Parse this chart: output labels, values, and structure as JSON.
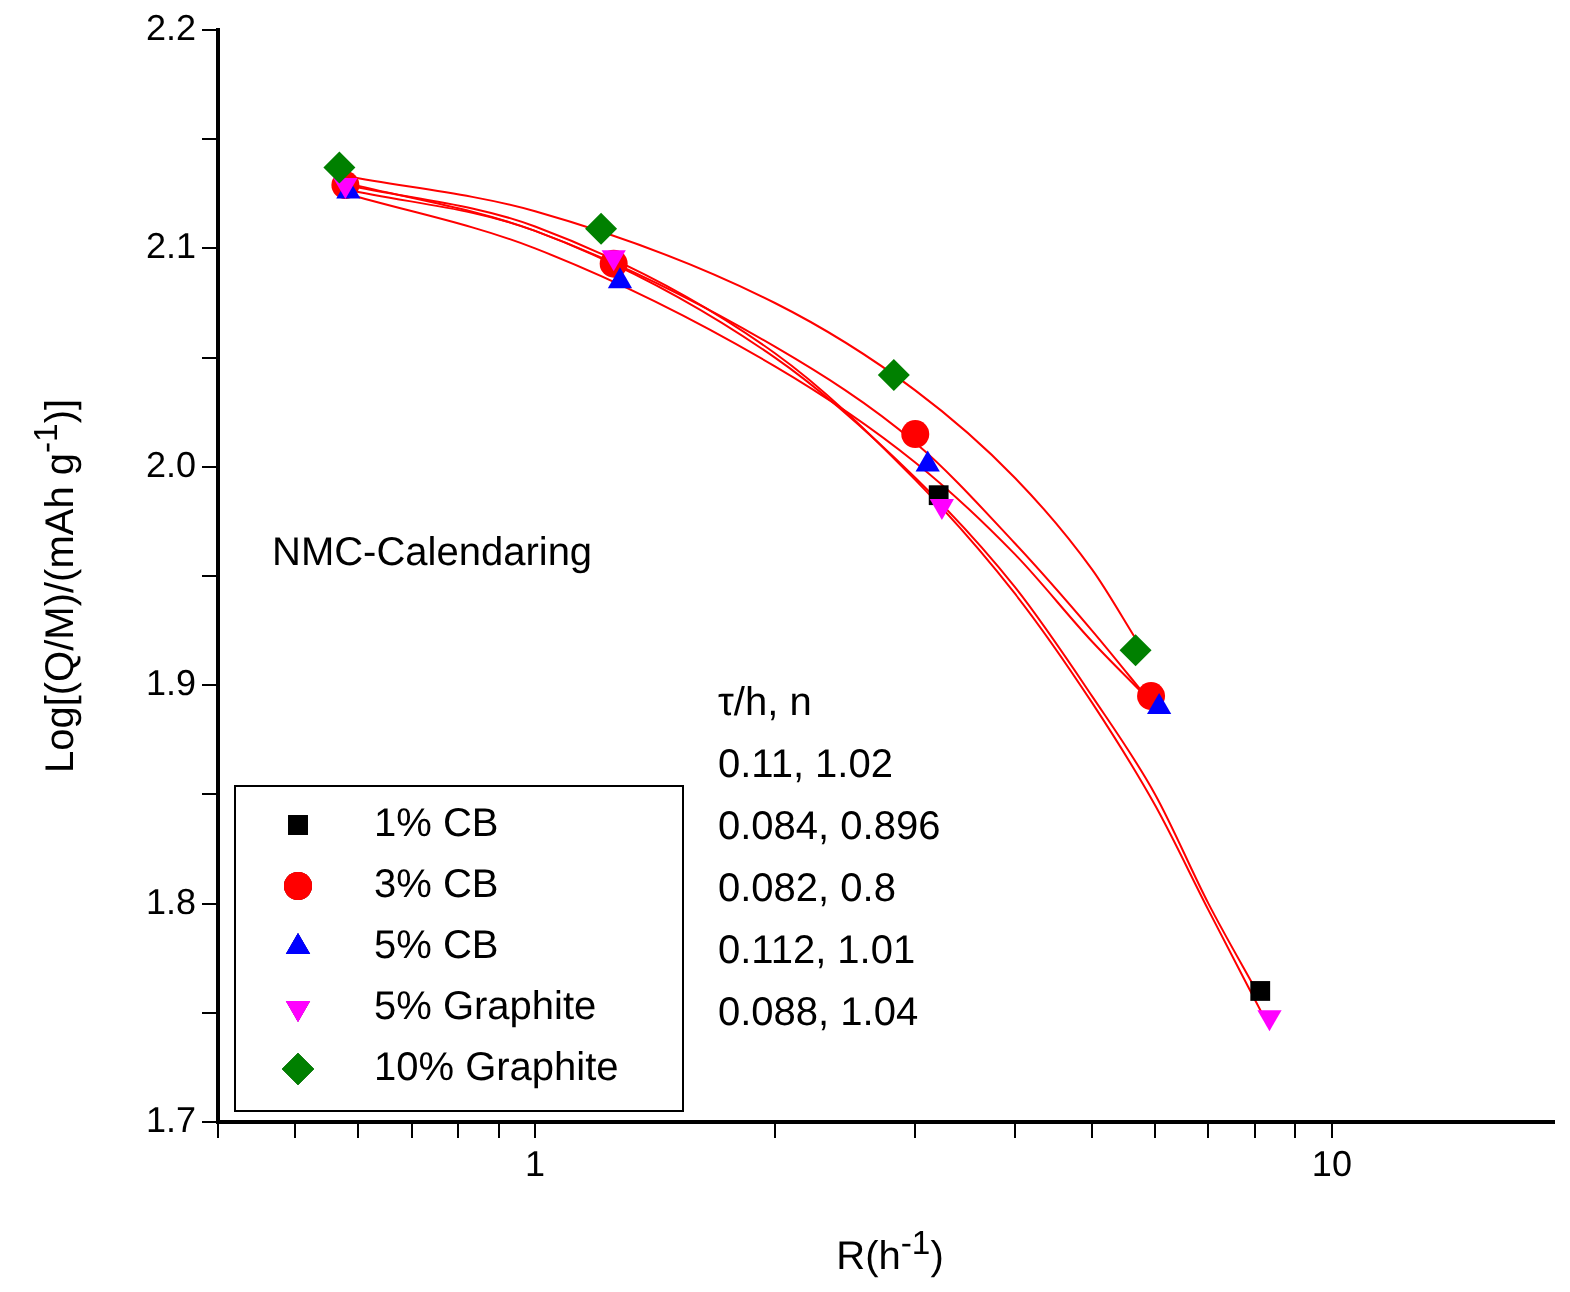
{
  "chart_data": {
    "type": "scatter",
    "xlabel": "R(h$^{-1}$)",
    "ylabel": "Log[(Q/M)/(mAh g$^{-1}$)]",
    "log": "x",
    "grid": false,
    "legend": "bottom left",
    "xlim": [
      0.4,
      19
    ],
    "xticks": [
      {
        "value": 0.4,
        "label": null
      },
      {
        "value": 0.5,
        "label": null
      },
      {
        "value": 0.6,
        "label": null
      },
      {
        "value": 0.7,
        "label": null
      },
      {
        "value": 0.8,
        "label": null
      },
      {
        "value": 0.9,
        "label": null
      },
      1,
      {
        "value": 2,
        "label": null
      },
      {
        "value": 3,
        "label": null
      },
      {
        "value": 4,
        "label": null
      },
      {
        "value": 5,
        "label": null
      },
      {
        "value": 6,
        "label": null
      },
      {
        "value": 7,
        "label": null
      },
      {
        "value": 8,
        "label": null
      },
      {
        "value": 9,
        "label": null
      },
      10
    ],
    "ylim": [
      1.7,
      2.2
    ],
    "yticks": [
      {
        "value": 1.7,
        "label": "1.7"
      },
      {
        "value": 1.75,
        "label": null
      },
      {
        "value": 1.8,
        "label": "1.8"
      },
      {
        "value": 1.85,
        "label": null
      },
      {
        "value": 1.9,
        "label": "1.9"
      },
      {
        "value": 1.95,
        "label": null
      },
      {
        "value": 2.0,
        "label": "2.0"
      },
      {
        "value": 2.05,
        "label": null
      },
      {
        "value": 2.1,
        "label": "2.1"
      },
      {
        "value": 2.15,
        "label": null
      },
      {
        "value": 2.2,
        "label": "2.2"
      }
    ],
    "series": [
      {
        "type": "line",
        "marker": "none",
        "color": "#ff0000",
        "x": [
          0.58,
          1,
          2,
          3,
          4,
          5,
          5.7
        ],
        "values": [
          2.133,
          2.117,
          2.075,
          2.035,
          1.995,
          1.953,
          1.92
        ]
      },
      {
        "type": "line",
        "marker": "none",
        "color": "#ff0000",
        "x": [
          0.58,
          1,
          2,
          3,
          4,
          5,
          5.9
        ],
        "values": [
          2.13,
          2.108,
          2.055,
          2.011,
          1.965,
          1.925,
          1.893
        ]
      },
      {
        "type": "line",
        "marker": "none",
        "color": "#ff0000",
        "x": [
          0.58,
          1,
          2,
          3,
          4,
          5,
          6.1
        ],
        "values": [
          2.125,
          2.1,
          2.046,
          2.002,
          1.96,
          1.92,
          1.888
        ]
      },
      {
        "type": "line",
        "marker": "none",
        "color": "#ff0000",
        "x": [
          0.58,
          1,
          2,
          3,
          4,
          5,
          6,
          7,
          8.1
        ],
        "values": [
          2.127,
          2.108,
          2.05,
          1.995,
          1.945,
          1.895,
          1.85,
          1.8,
          1.758
        ]
      },
      {
        "type": "line",
        "marker": "none",
        "color": "#ff0000",
        "x": [
          0.58,
          1,
          2,
          3,
          4,
          5,
          6,
          7,
          8.3
        ],
        "values": [
          2.129,
          2.11,
          2.052,
          1.994,
          1.942,
          1.892,
          1.845,
          1.797,
          1.745
        ]
      },
      {
        "name": "1% CB",
        "marker": "square",
        "color": "#000000",
        "x": [
          3.21,
          8.13
        ],
        "values": [
          1.987,
          1.76
        ]
      },
      {
        "name": "3% CB",
        "marker": "circle",
        "color": "#ff0000",
        "x": [
          0.578,
          1.255,
          3.0,
          5.93
        ],
        "values": [
          2.129,
          2.093,
          2.015,
          1.895
        ]
      },
      {
        "name": "5% CB",
        "marker": "triangle",
        "color": "#0000ff",
        "x": [
          0.583,
          1.278,
          3.11,
          6.07
        ],
        "values": [
          2.126,
          2.085,
          2.001,
          1.89
        ]
      },
      {
        "name": "5% Graphite",
        "marker": "triangle-down",
        "color": "#ff00ff",
        "x": [
          0.578,
          1.255,
          3.24,
          8.35
        ],
        "values": [
          2.129,
          2.096,
          1.982,
          1.748
        ]
      },
      {
        "name": "10% Graphite",
        "marker": "diamond",
        "color": "#008000",
        "x": [
          0.568,
          1.21,
          2.82,
          5.67
        ],
        "values": [
          2.137,
          2.109,
          2.042,
          1.916
        ]
      }
    ],
    "annotations": [
      "NMC-Calendaring",
      "τ/h, n",
      "0.11, 1.02",
      "0.084, 0.896",
      "0.082, 0.8",
      "0.112, 1.01",
      "0.088, 1.04"
    ]
  }
}
